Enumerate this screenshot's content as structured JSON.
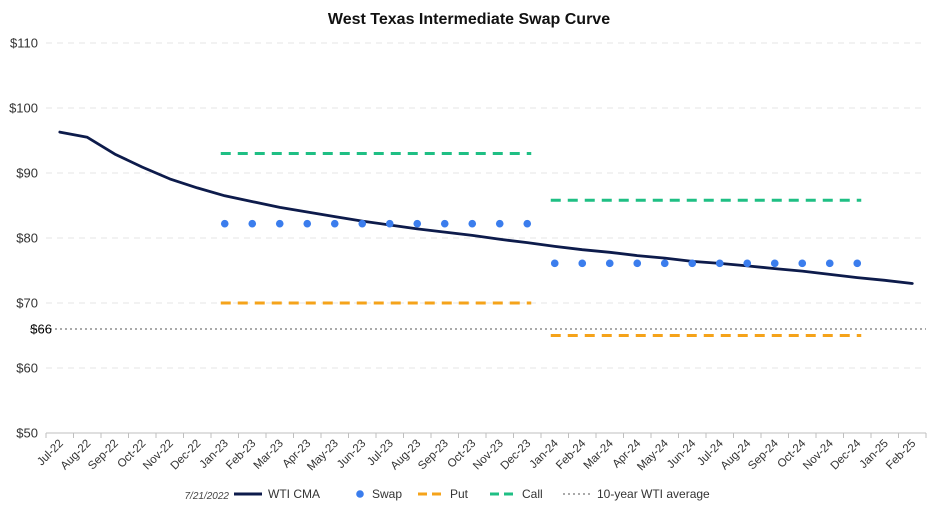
{
  "chart_data": {
    "type": "line",
    "title": "West Texas Intermediate Swap Curve",
    "date_note": "7/21/2022",
    "xlabel": "",
    "ylabel": "",
    "ylim": [
      50,
      110
    ],
    "y_ticks": [
      {
        "value": 110,
        "label": "$110"
      },
      {
        "value": 100,
        "label": "$100"
      },
      {
        "value": 90,
        "label": "$90"
      },
      {
        "value": 80,
        "label": "$80"
      },
      {
        "value": 70,
        "label": "$70"
      },
      {
        "value": 60,
        "label": "$60"
      },
      {
        "value": 50,
        "label": "$50"
      }
    ],
    "reference_label": "$66",
    "grid": true,
    "legend_position": "bottom",
    "categories": [
      "Jul-22",
      "Aug-22",
      "Sep-22",
      "Oct-22",
      "Nov-22",
      "Dec-22",
      "Jan-23",
      "Feb-23",
      "Mar-23",
      "Apr-23",
      "May-23",
      "Jun-23",
      "Jul-23",
      "Aug-23",
      "Sep-23",
      "Oct-23",
      "Nov-23",
      "Dec-23",
      "Jan-24",
      "Feb-24",
      "Mar-24",
      "Apr-24",
      "May-24",
      "Jun-24",
      "Jul-24",
      "Aug-24",
      "Sep-24",
      "Oct-24",
      "Nov-24",
      "Dec-24",
      "Jan-25",
      "Feb-25"
    ],
    "series": [
      {
        "name": "WTI CMA",
        "kind": "line",
        "color": "#0d1b4b",
        "values": [
          96.3,
          95.5,
          92.9,
          90.9,
          89.1,
          87.7,
          86.5,
          85.6,
          84.7,
          84.0,
          83.3,
          82.6,
          82.0,
          81.4,
          80.9,
          80.4,
          79.8,
          79.3,
          78.7,
          78.2,
          77.8,
          77.3,
          76.9,
          76.4,
          76.1,
          75.7,
          75.3,
          74.9,
          74.4,
          73.9,
          73.5,
          73.0
        ]
      },
      {
        "name": "Swap",
        "kind": "dots",
        "color": "#3b7ded",
        "values": [
          null,
          null,
          null,
          null,
          null,
          null,
          82.2,
          82.2,
          82.2,
          82.2,
          82.2,
          82.2,
          82.2,
          82.2,
          82.2,
          82.2,
          82.2,
          82.2,
          76.1,
          76.1,
          76.1,
          76.1,
          76.1,
          76.1,
          76.1,
          76.1,
          76.1,
          76.1,
          76.1,
          76.1,
          null,
          null
        ]
      },
      {
        "name": "Put",
        "kind": "dash",
        "color": "#f5a31a",
        "values": [
          null,
          null,
          null,
          null,
          null,
          null,
          70.0,
          70.0,
          70.0,
          70.0,
          70.0,
          70.0,
          70.0,
          70.0,
          70.0,
          70.0,
          70.0,
          70.0,
          65.0,
          65.0,
          65.0,
          65.0,
          65.0,
          65.0,
          65.0,
          65.0,
          65.0,
          65.0,
          65.0,
          65.0,
          null,
          null
        ]
      },
      {
        "name": "Call",
        "kind": "dash",
        "color": "#1fbf84",
        "values": [
          null,
          null,
          null,
          null,
          null,
          null,
          93.0,
          93.0,
          93.0,
          93.0,
          93.0,
          93.0,
          93.0,
          93.0,
          93.0,
          93.0,
          93.0,
          93.0,
          85.8,
          85.8,
          85.8,
          85.8,
          85.8,
          85.8,
          85.8,
          85.8,
          85.8,
          85.8,
          85.8,
          85.8,
          null,
          null
        ]
      },
      {
        "name": "10-year WTI average",
        "kind": "reference",
        "color": "#aaaaaa",
        "value": 66
      }
    ]
  }
}
